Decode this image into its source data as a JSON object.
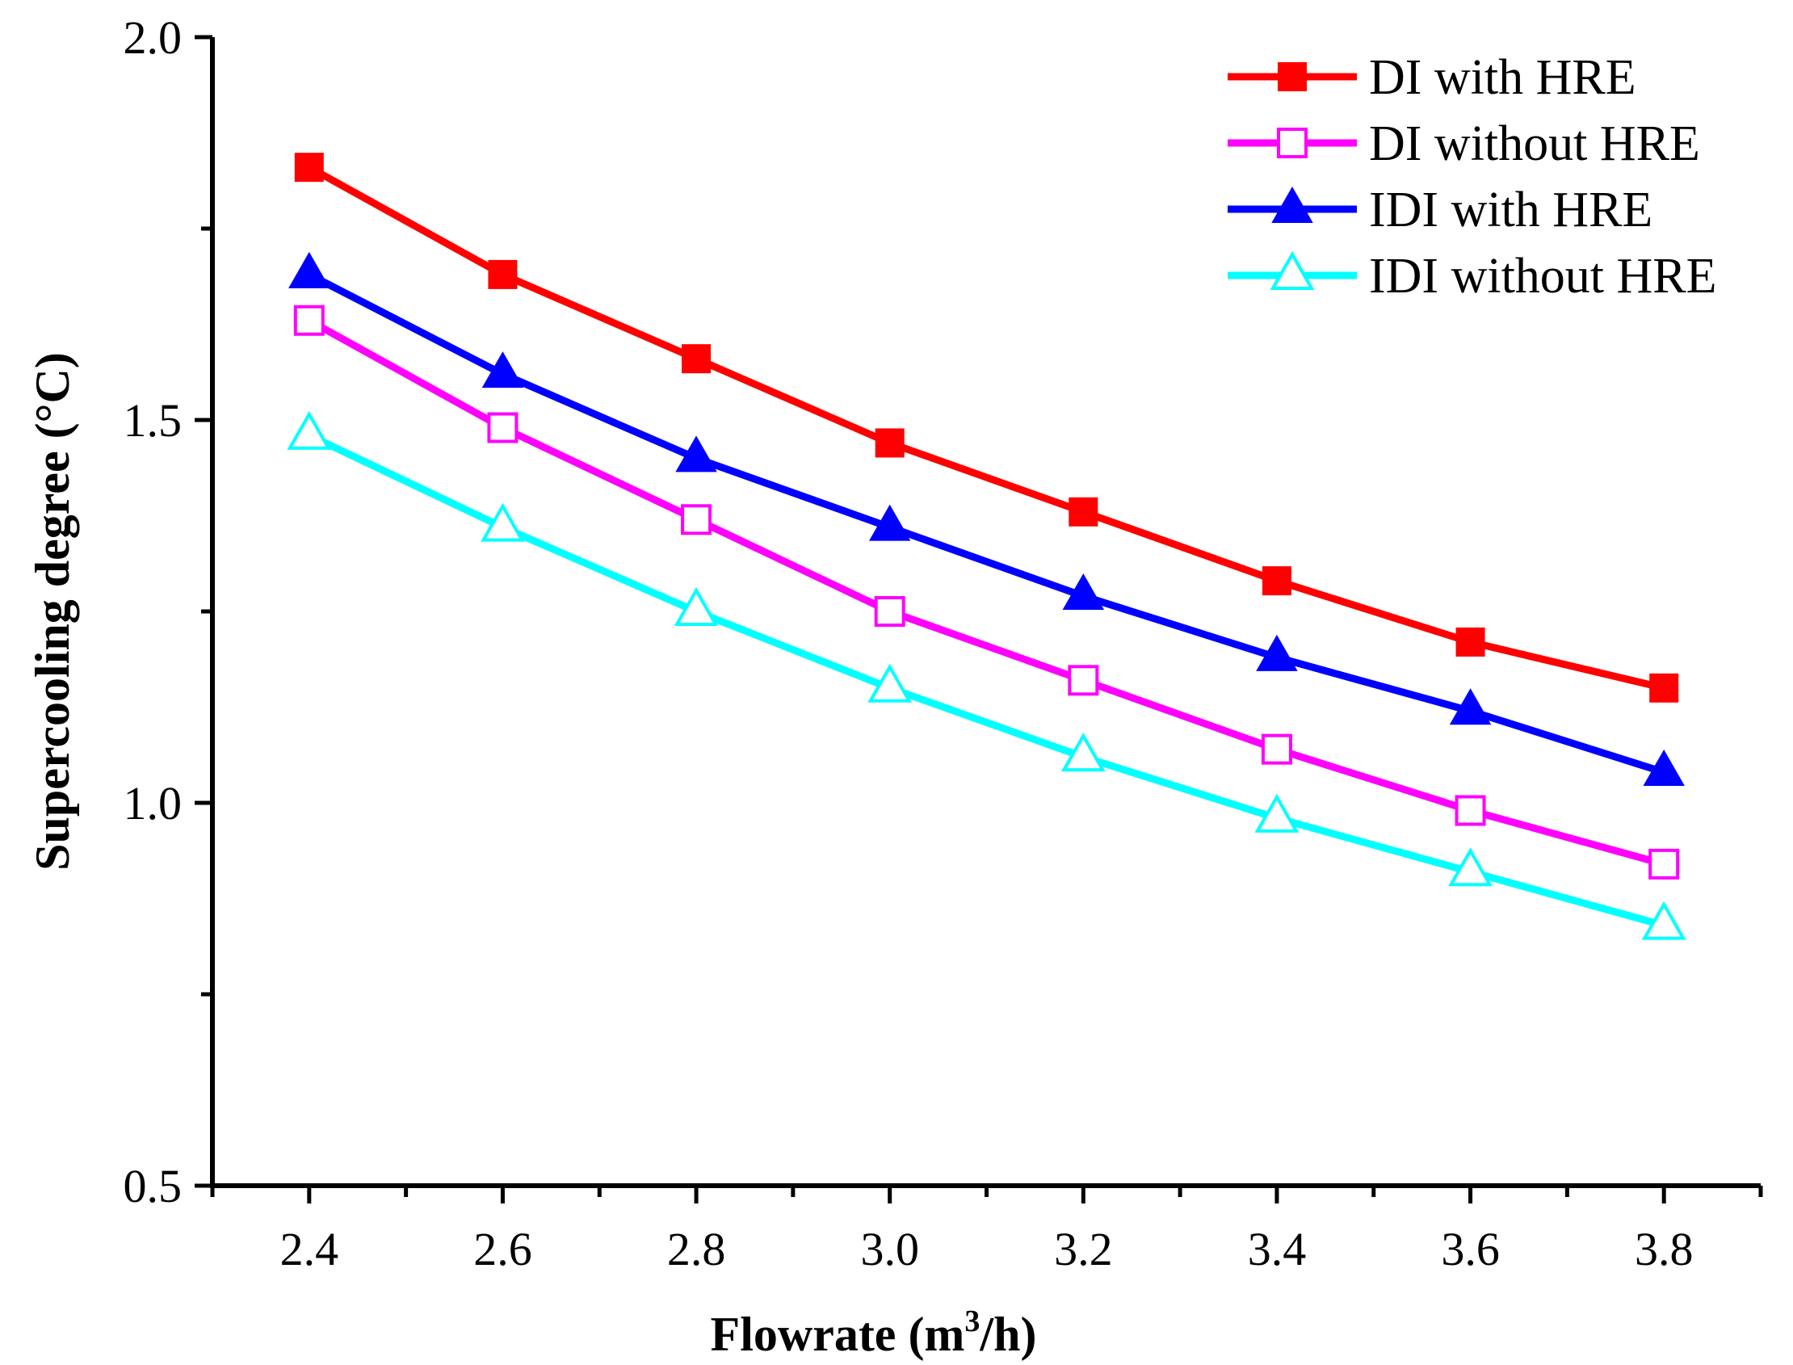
{
  "chart_data": {
    "type": "line",
    "xlabel_main": "Flowrate (m",
    "xlabel_sup": "3",
    "xlabel_end": "/h)",
    "ylabel": "Supercooling degree (°C)",
    "x": [
      2.4,
      2.6,
      2.8,
      3.0,
      3.2,
      3.4,
      3.6,
      3.8
    ],
    "x_ticks": [
      "2.4",
      "2.6",
      "2.8",
      "3.0",
      "3.2",
      "3.4",
      "3.6",
      "3.8"
    ],
    "y_ticks": [
      "0.5",
      "1.0",
      "1.5",
      "2.0"
    ],
    "xlim": [
      2.3,
      3.9
    ],
    "ylim": [
      0.5,
      2.0
    ],
    "grid": false,
    "legend_position": "top-right",
    "series": [
      {
        "name": "DI with HRE",
        "color": "#ff0000",
        "marker": "square",
        "filled": true,
        "values": [
          1.83,
          1.69,
          1.58,
          1.47,
          1.38,
          1.29,
          1.21,
          1.15
        ]
      },
      {
        "name": "DI without HRE",
        "color": "#ff00ff",
        "marker": "square",
        "filled": false,
        "values": [
          1.63,
          1.49,
          1.37,
          1.25,
          1.16,
          1.07,
          0.99,
          0.92
        ]
      },
      {
        "name": "IDI with HRE",
        "color": "#0000ff",
        "marker": "triangle",
        "filled": true,
        "values": [
          1.69,
          1.56,
          1.45,
          1.36,
          1.27,
          1.19,
          1.12,
          1.04
        ]
      },
      {
        "name": "IDI without HRE",
        "color": "#00ffff",
        "marker": "triangle",
        "filled": false,
        "values": [
          1.48,
          1.36,
          1.25,
          1.15,
          1.06,
          0.98,
          0.91,
          0.84
        ]
      }
    ]
  }
}
